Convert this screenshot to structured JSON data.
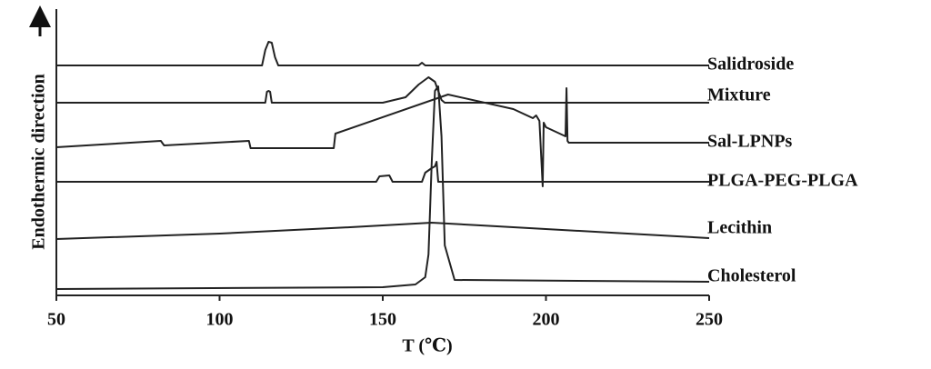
{
  "chart_data": {
    "type": "line",
    "xlabel": "T (℃)",
    "ylabel": "Endothermic direction",
    "xlim": [
      50,
      250
    ],
    "xticks": [
      50,
      100,
      150,
      200,
      250
    ],
    "ylim": [
      0,
      315
    ],
    "series": [
      {
        "name": "Salidroside",
        "color": "#222222",
        "x": [
          50,
          113,
          114,
          115,
          116,
          117,
          118,
          161,
          162,
          163,
          250
        ],
        "values": [
          253,
          253,
          270,
          279,
          278,
          262,
          253,
          253,
          256,
          253,
          253
        ]
      },
      {
        "name": "Mixture",
        "color": "#222222",
        "x": [
          50,
          114,
          114.5,
          115,
          115.5,
          116,
          150,
          157,
          161,
          164,
          166,
          168,
          169,
          250
        ],
        "values": [
          212,
          212,
          224,
          225,
          224,
          212,
          212,
          218,
          232,
          240,
          235,
          215,
          212,
          212
        ]
      },
      {
        "name": "Sal-LPNPs",
        "color": "#222222",
        "x": [
          50,
          82,
          83,
          109,
          109.5,
          135,
          135.5,
          170,
          190,
          196,
          197,
          198,
          199,
          199.3,
          200,
          203,
          206,
          206.3,
          206.6,
          207,
          250
        ],
        "values": [
          163,
          170,
          165,
          170,
          162,
          162,
          178,
          221,
          205,
          195,
          198,
          192,
          120,
          190,
          185,
          180,
          175,
          228,
          170,
          168,
          168
        ]
      },
      {
        "name": "PLGA-PEG-PLGA",
        "color": "#222222",
        "x": [
          50,
          148,
          149,
          152,
          153,
          162,
          163,
          165,
          166,
          166.5,
          167,
          250
        ],
        "values": [
          125,
          125,
          131,
          132,
          125,
          125,
          135,
          140,
          142,
          147,
          125,
          125
        ]
      },
      {
        "name": "Lecithin",
        "color": "#222222",
        "x": [
          50,
          100,
          140,
          165,
          180,
          220,
          250
        ],
        "values": [
          62,
          68,
          75,
          80,
          77,
          69,
          63
        ]
      },
      {
        "name": "Cholesterol",
        "color": "#222222",
        "x": [
          50,
          150,
          160,
          163,
          164,
          165,
          166,
          167,
          168,
          169,
          172,
          250
        ],
        "values": [
          7,
          9,
          12,
          20,
          45,
          145,
          225,
          230,
          175,
          55,
          17,
          15
        ]
      }
    ]
  }
}
